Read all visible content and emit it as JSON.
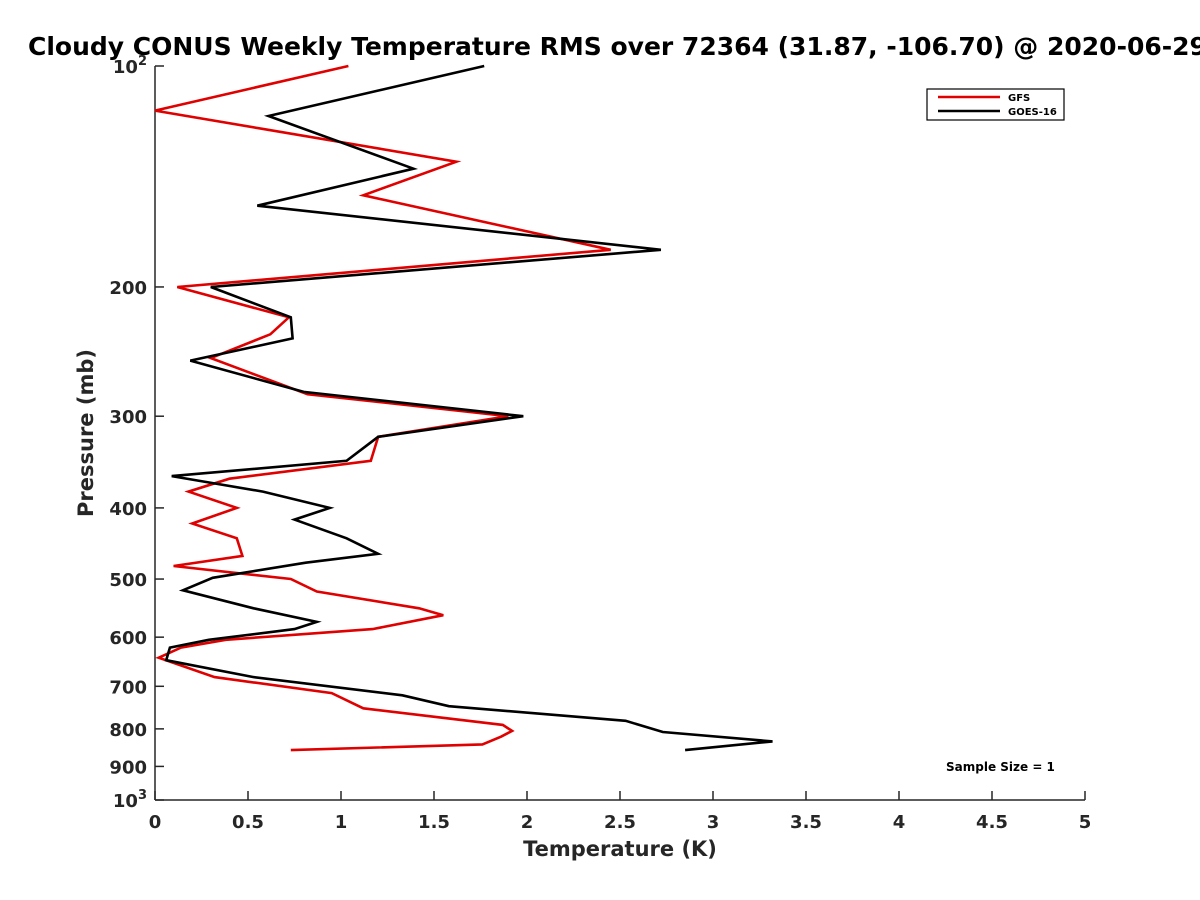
{
  "chart_data": {
    "type": "line",
    "title": "Cloudy CONUS Weekly Temperature RMS over 72364 (31.87, -106.70) @ 2020-06-29",
    "xlabel": "Temperature (K)",
    "ylabel": "Pressure (mb)",
    "xlim": [
      0,
      5
    ],
    "ylim": [
      100,
      1000
    ],
    "y_scale": "log",
    "y_reversed": true,
    "grid": false,
    "legend_position": "top-right",
    "x_ticks": [
      "0",
      "0.5",
      "1",
      "1.5",
      "2",
      "2.5",
      "3",
      "3.5",
      "4",
      "4.5",
      "5"
    ],
    "y_ticks": [
      {
        "value": 100,
        "label": "10",
        "exp": "2"
      },
      {
        "value": 200,
        "label": "200",
        "exp": ""
      },
      {
        "value": 300,
        "label": "300",
        "exp": ""
      },
      {
        "value": 400,
        "label": "400",
        "exp": ""
      },
      {
        "value": 500,
        "label": "500",
        "exp": ""
      },
      {
        "value": 600,
        "label": "600",
        "exp": ""
      },
      {
        "value": 700,
        "label": "700",
        "exp": ""
      },
      {
        "value": 800,
        "label": "800",
        "exp": ""
      },
      {
        "value": 900,
        "label": "900",
        "exp": ""
      },
      {
        "value": 1000,
        "label": "10",
        "exp": "3"
      }
    ],
    "series": [
      {
        "name": "GFS",
        "color": "#e00000",
        "points": [
          [
            1.04,
            100
          ],
          [
            0.0,
            115
          ],
          [
            1.62,
            135
          ],
          [
            1.12,
            150
          ],
          [
            2.45,
            178
          ],
          [
            0.12,
            200
          ],
          [
            0.72,
            220
          ],
          [
            0.62,
            232
          ],
          [
            0.3,
            250
          ],
          [
            0.82,
            280
          ],
          [
            1.9,
            300
          ],
          [
            1.2,
            320
          ],
          [
            1.16,
            345
          ],
          [
            0.4,
            365
          ],
          [
            0.18,
            380
          ],
          [
            0.44,
            400
          ],
          [
            0.2,
            420
          ],
          [
            0.44,
            440
          ],
          [
            0.47,
            465
          ],
          [
            0.1,
            480
          ],
          [
            0.73,
            500
          ],
          [
            0.87,
            520
          ],
          [
            1.42,
            548
          ],
          [
            1.55,
            560
          ],
          [
            1.17,
            585
          ],
          [
            0.38,
            605
          ],
          [
            0.14,
            620
          ],
          [
            0.02,
            640
          ],
          [
            0.32,
            680
          ],
          [
            0.95,
            715
          ],
          [
            1.12,
            750
          ],
          [
            1.87,
            790
          ],
          [
            1.92,
            805
          ],
          [
            1.86,
            820
          ],
          [
            1.76,
            840
          ],
          [
            0.73,
            855
          ]
        ]
      },
      {
        "name": "GOES-16",
        "color": "#000000",
        "points": [
          [
            1.77,
            100
          ],
          [
            0.61,
            117
          ],
          [
            1.39,
            138
          ],
          [
            0.55,
            155
          ],
          [
            2.72,
            178
          ],
          [
            0.3,
            200
          ],
          [
            0.73,
            220
          ],
          [
            0.74,
            235
          ],
          [
            0.19,
            252
          ],
          [
            0.8,
            278
          ],
          [
            1.98,
            300
          ],
          [
            1.2,
            320
          ],
          [
            1.03,
            345
          ],
          [
            0.09,
            362
          ],
          [
            0.58,
            380
          ],
          [
            0.94,
            400
          ],
          [
            0.75,
            415
          ],
          [
            1.03,
            440
          ],
          [
            1.2,
            462
          ],
          [
            0.81,
            475
          ],
          [
            0.31,
            498
          ],
          [
            0.15,
            518
          ],
          [
            0.53,
            548
          ],
          [
            0.87,
            572
          ],
          [
            0.75,
            585
          ],
          [
            0.29,
            605
          ],
          [
            0.08,
            620
          ],
          [
            0.06,
            645
          ],
          [
            0.53,
            680
          ],
          [
            1.33,
            720
          ],
          [
            1.58,
            745
          ],
          [
            2.53,
            780
          ],
          [
            2.73,
            808
          ],
          [
            3.32,
            832
          ],
          [
            2.85,
            855
          ]
        ]
      }
    ],
    "annotation": "Sample Size = 1"
  }
}
